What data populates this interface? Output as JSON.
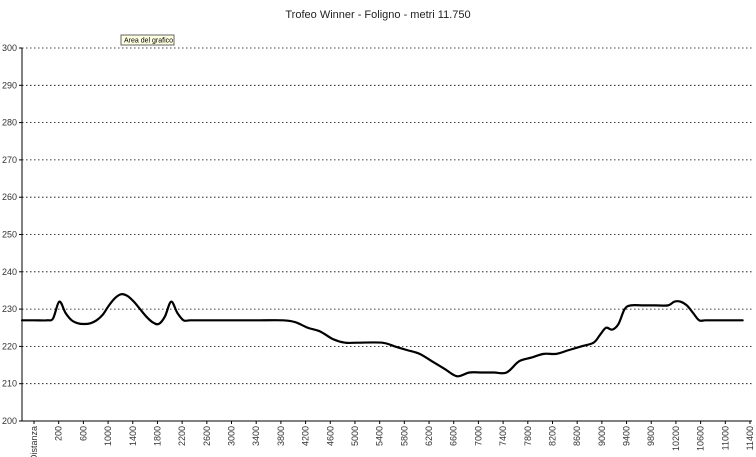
{
  "tooltip": "Area del grafico",
  "chart_data": {
    "type": "line",
    "title": "Trofeo Winner - Foligno - metri 11.750",
    "x_axis_first_label": "Distanza",
    "x_tick_labels": [
      "200",
      "600",
      "1000",
      "1400",
      "1800",
      "2200",
      "2600",
      "3000",
      "3400",
      "3800",
      "4200",
      "4600",
      "5000",
      "5400",
      "5800",
      "6200",
      "6600",
      "7000",
      "7400",
      "7800",
      "8200",
      "8600",
      "9000",
      "9400",
      "9800",
      "10200",
      "10600",
      "11000",
      "11400"
    ],
    "ylim": [
      200,
      300
    ],
    "y_ticks": [
      200,
      210,
      220,
      230,
      240,
      250,
      260,
      270,
      280,
      290,
      300
    ],
    "grid": "horizontal-dotted",
    "series": [
      {
        "color": "#000000",
        "x": [
          0,
          200,
          400,
          500,
          600,
          700,
          800,
          900,
          1000,
          1100,
          1200,
          1300,
          1400,
          1500,
          1600,
          1700,
          1800,
          1900,
          2000,
          2100,
          2200,
          2300,
          2400,
          2500,
          2600,
          2700,
          2800,
          2900,
          3000,
          3400,
          3800,
          4200,
          4400,
          4600,
          4800,
          5000,
          5200,
          5400,
          5800,
          6000,
          6200,
          6400,
          6600,
          6800,
          7000,
          7200,
          7400,
          7600,
          7800,
          8000,
          8200,
          8400,
          8600,
          8800,
          9000,
          9200,
          9300,
          9400,
          9500,
          9600,
          9700,
          9800,
          10000,
          10200,
          10400,
          10500,
          10600,
          10700,
          10800,
          10900,
          11000,
          11200,
          11400,
          11600
        ],
        "y": [
          227,
          227,
          227,
          227.5,
          232,
          229,
          227,
          226.2,
          226,
          226.2,
          227,
          228.5,
          231,
          233,
          234,
          233.5,
          232,
          230,
          228,
          226.5,
          226,
          228,
          232,
          229,
          227,
          227,
          227,
          227,
          227,
          227,
          227,
          227,
          226.5,
          225,
          224,
          222,
          221,
          221,
          221,
          220,
          219,
          218,
          216,
          214,
          212,
          213,
          213,
          213,
          213,
          216,
          217,
          218,
          218,
          219,
          220,
          221,
          223,
          225,
          224.5,
          226,
          230,
          231,
          231,
          231,
          231,
          232,
          232,
          231,
          229,
          227,
          227,
          227,
          227,
          227
        ]
      }
    ]
  }
}
